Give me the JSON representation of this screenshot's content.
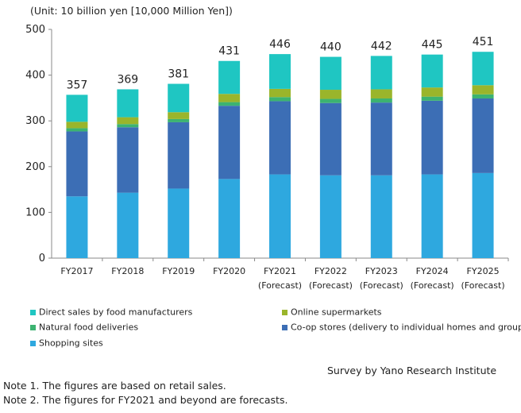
{
  "chart_data": {
    "type": "bar",
    "stacked": true,
    "unit_label": "(Unit: 10 billion yen [10,000 Million Yen])",
    "categories": [
      "FY2017",
      "FY2018",
      "FY2019",
      "FY2020",
      "FY2021",
      "FY2022",
      "FY2023",
      "FY2024",
      "FY2025"
    ],
    "category_sublabels": [
      "",
      "",
      "",
      "",
      "(Forecast)",
      "(Forecast)",
      "(Forecast)",
      "(Forecast)",
      "(Forecast)"
    ],
    "ylim": [
      0,
      500
    ],
    "yticks": [
      0,
      100,
      200,
      300,
      400,
      500
    ],
    "totals": [
      357,
      369,
      381,
      431,
      446,
      440,
      442,
      445,
      451
    ],
    "series": [
      {
        "name": "Shopping sites",
        "color": "#2ea8df",
        "values": [
          135,
          143,
          152,
          173,
          183,
          181,
          181,
          183,
          186
        ]
      },
      {
        "name": "Co-op stores (delivery to individual homes and groups)",
        "color": "#3c6eb5",
        "values": [
          142,
          143,
          145,
          160,
          160,
          158,
          159,
          161,
          163
        ]
      },
      {
        "name": "Natural food deliveries",
        "color": "#3cb371",
        "values": [
          7,
          7,
          7,
          8,
          9,
          9,
          9,
          9,
          9
        ]
      },
      {
        "name": "Online supermarkets",
        "color": "#9ab52b",
        "values": [
          14,
          15,
          15,
          18,
          18,
          20,
          20,
          20,
          20
        ]
      },
      {
        "name": "Direct sales by food manufacturers",
        "color": "#1fc6c2",
        "values": [
          59,
          61,
          62,
          72,
          76,
          72,
          73,
          72,
          73
        ]
      }
    ],
    "legend": [
      {
        "name": "Direct sales by food manufacturers",
        "color": "#1fc6c2"
      },
      {
        "name": "Online supermarkets",
        "color": "#9ab52b"
      },
      {
        "name": "Natural food deliveries",
        "color": "#3cb371"
      },
      {
        "name": "Co-op stores (delivery to individual homes and groups)",
        "color": "#3c6eb5"
      },
      {
        "name": "Shopping sites",
        "color": "#2ea8df"
      }
    ],
    "legend_placement": "bottom",
    "grid": false
  },
  "source": "Survey by Yano Research Institute",
  "notes": [
    "Note 1. The figures are based on retail sales.",
    "Note 2. The figures for FY2021 and beyond are forecasts."
  ]
}
